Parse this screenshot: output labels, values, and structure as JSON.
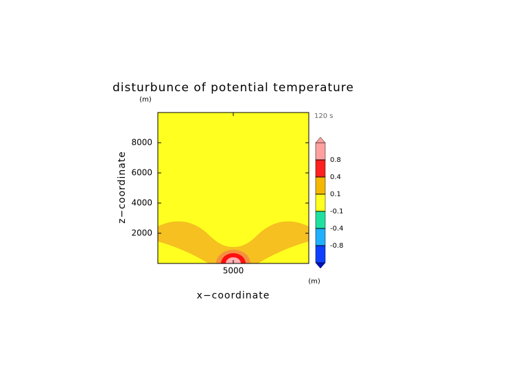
{
  "chart_data": {
    "type": "contour",
    "title": "disturbunce of potential temperature",
    "y_unit": "(m)",
    "x_unit": "(m)",
    "time_label": "120 s",
    "x_label": "x−coordinate",
    "y_label": "z−coordinate",
    "xlim": [
      0,
      10000
    ],
    "ylim": [
      0,
      10000
    ],
    "xticks": [
      5000
    ],
    "yticks": [
      2000,
      4000,
      6000,
      8000
    ],
    "colorbar": {
      "levels": [
        -0.8,
        -0.4,
        -0.1,
        0.1,
        0.4,
        0.8
      ],
      "colors": [
        "#1040ff",
        "#20b0ff",
        "#20e0a0",
        "#ffff20",
        "#f5b800",
        "#ff2020",
        "#ffa0a0"
      ]
    }
  }
}
